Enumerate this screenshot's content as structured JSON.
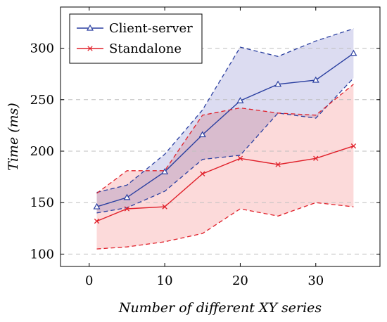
{
  "chart_data": {
    "type": "line",
    "xlabel": "Number of different XY series",
    "ylabel": "Time",
    "ylabel_unit": "(ms)",
    "xlim": [
      -3.8,
      38.5
    ],
    "ylim": [
      88,
      340
    ],
    "xticks": [
      0,
      10,
      20,
      30
    ],
    "yticks": [
      100,
      150,
      200,
      250,
      300
    ],
    "grid": "horizontal dashed",
    "legend_position": "top-left",
    "x": [
      1,
      5,
      10,
      15,
      20,
      25,
      30,
      35
    ],
    "series": [
      {
        "name": "Client-server",
        "color": "#2a3fa0",
        "fill_color": "#d6d6ee",
        "marker": "triangle",
        "values": [
          146,
          155,
          180,
          216,
          249,
          265,
          269,
          295
        ],
        "upper": [
          160,
          167,
          197,
          240,
          301,
          292,
          307,
          319
        ],
        "lower": [
          140,
          145,
          161,
          192,
          196,
          237,
          232,
          271
        ]
      },
      {
        "name": "Standalone",
        "color": "#e0202a",
        "fill_color": "#fbd3d4",
        "marker": "cross",
        "values": [
          132,
          144,
          146,
          178,
          193,
          187,
          193,
          205
        ],
        "upper": [
          159,
          181,
          181,
          235,
          242,
          237,
          235,
          265
        ],
        "lower": [
          105,
          107,
          112,
          120,
          144,
          137,
          150,
          146
        ]
      }
    ]
  }
}
